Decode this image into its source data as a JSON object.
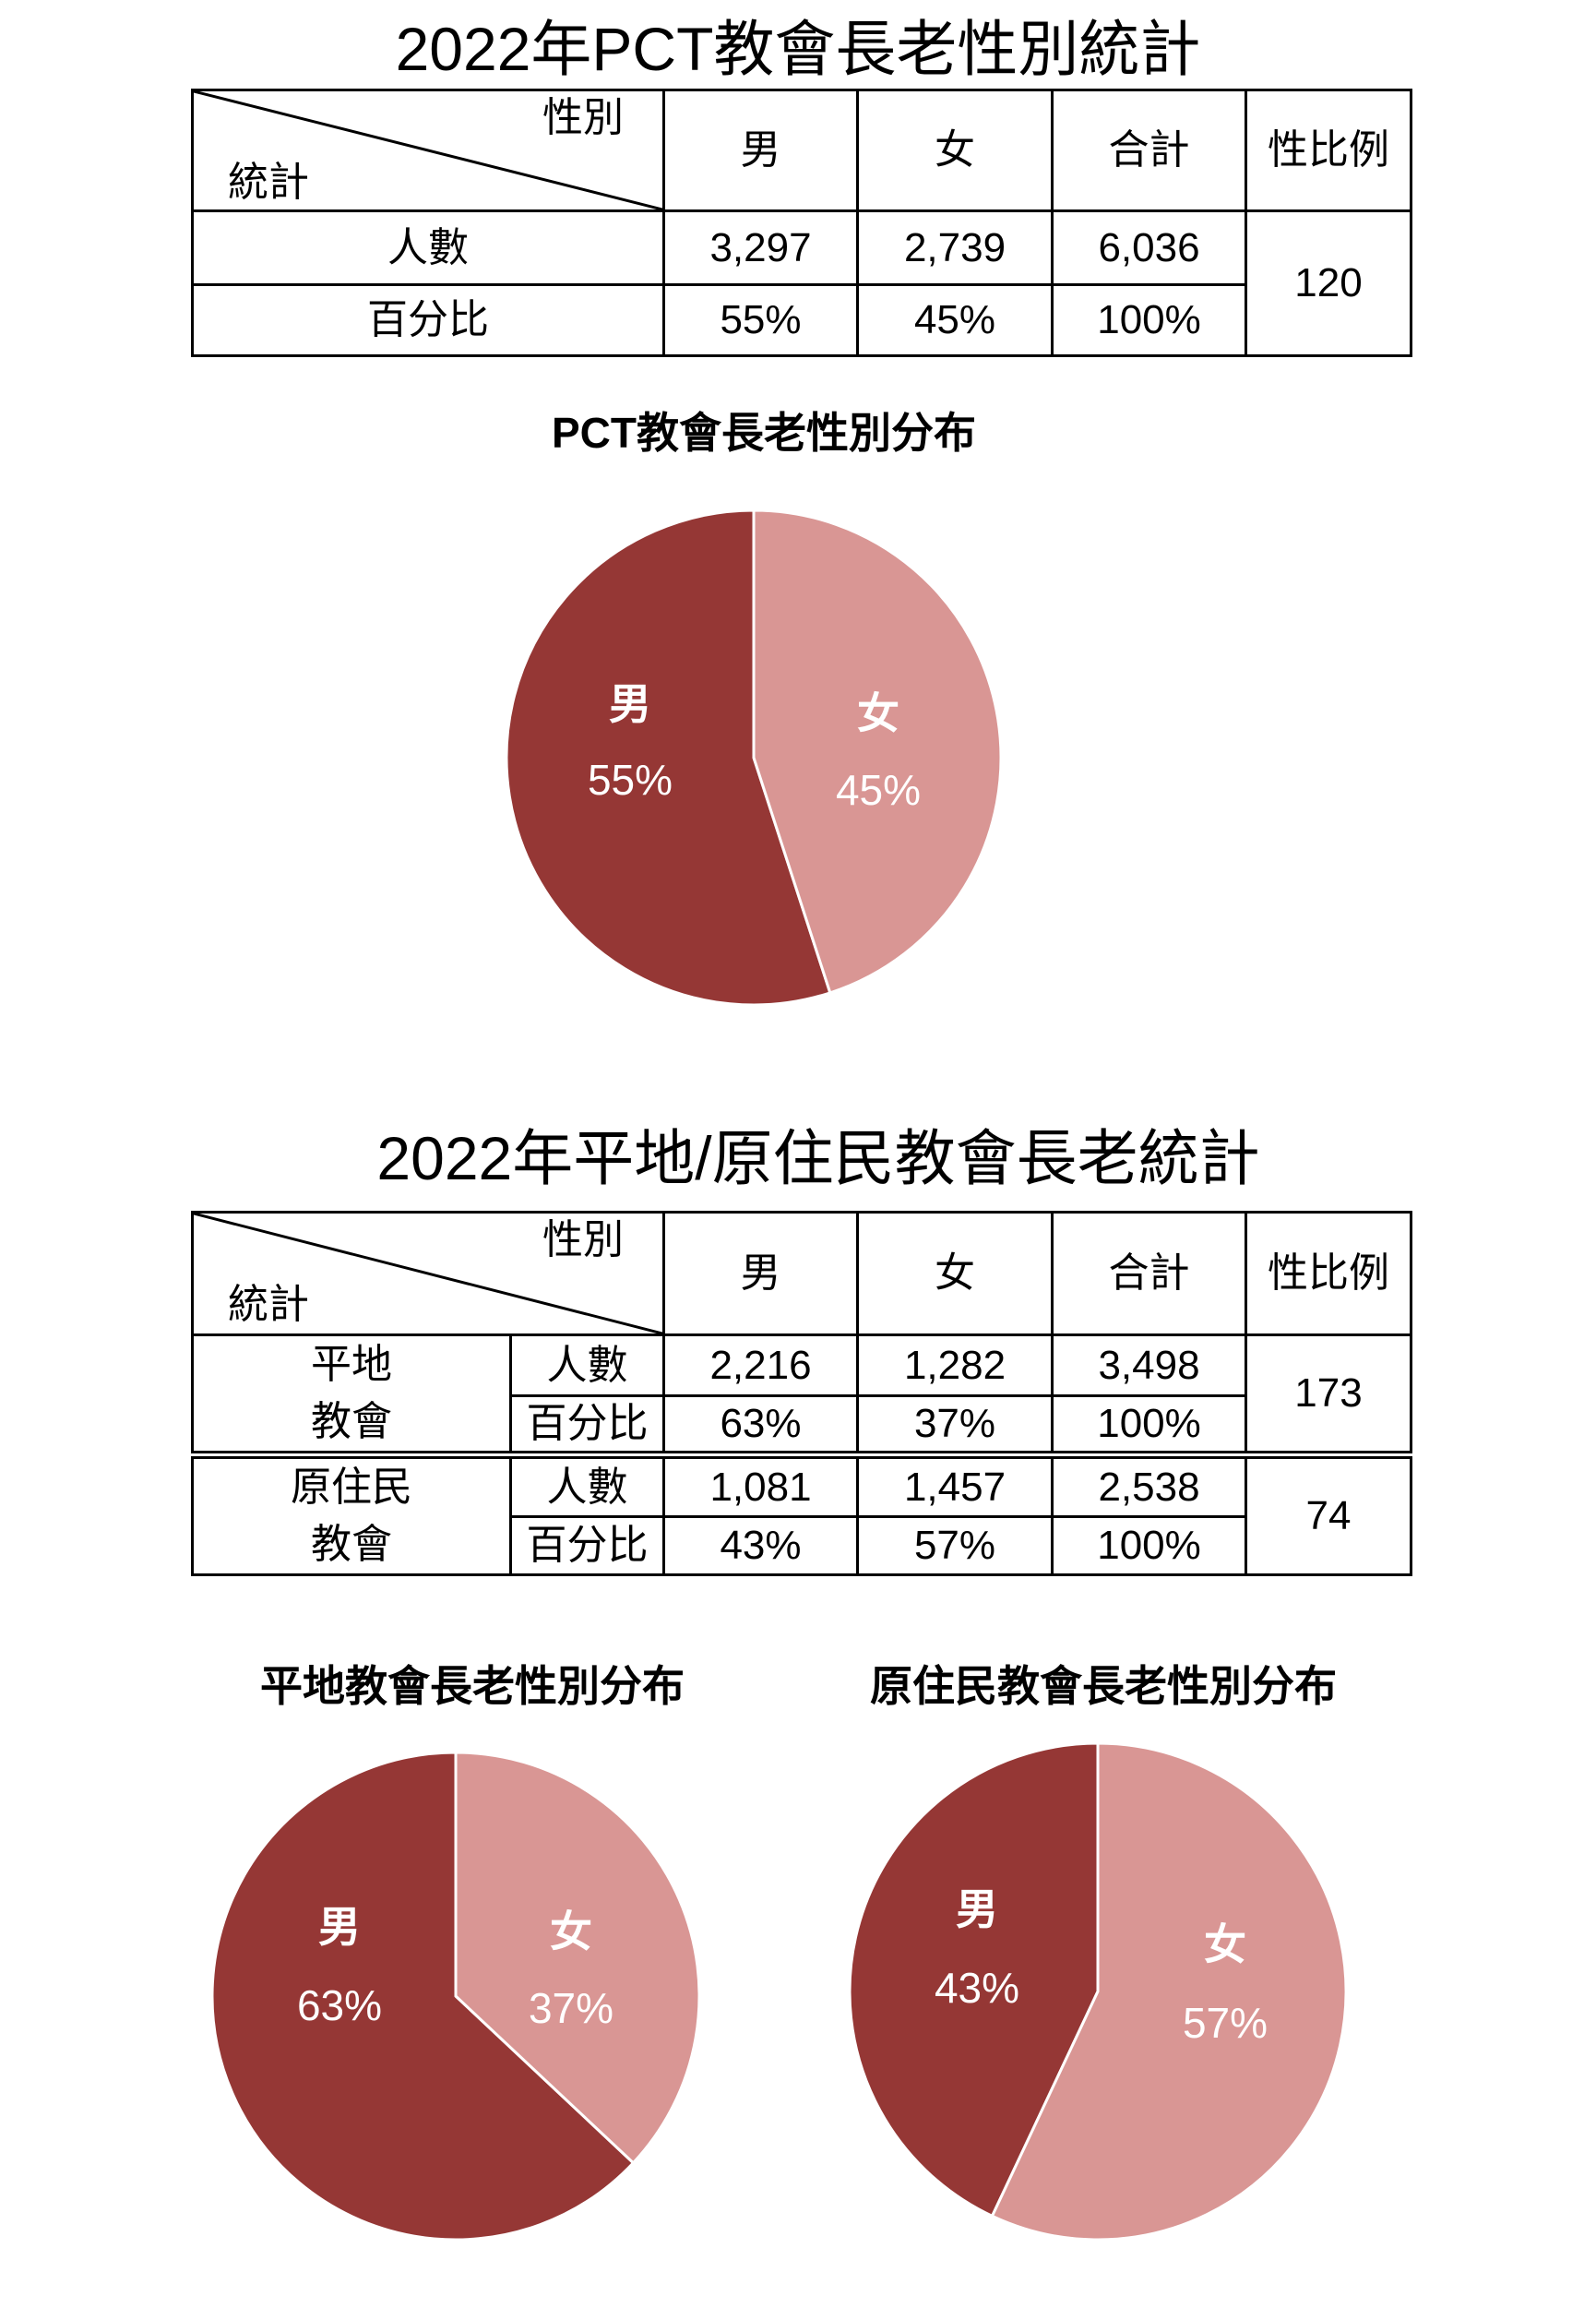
{
  "tables": [
    {
      "title": "2022年PCT教會長老性別統計",
      "corner_top": "性別",
      "corner_bottom": "統計",
      "columns": [
        "男",
        "女",
        "合計",
        "性比例"
      ],
      "rows": [
        {
          "label": "人數",
          "male": "3,297",
          "female": "2,739",
          "total": "6,036"
        },
        {
          "label": "百分比",
          "male": "55%",
          "female": "45%",
          "total": "100%"
        }
      ],
      "sex_ratio": "120"
    },
    {
      "title": "2022年平地/原住民教會長老統計",
      "corner_top": "性別",
      "corner_bottom": "統計",
      "columns": [
        "男",
        "女",
        "合計",
        "性比例"
      ],
      "groups": [
        {
          "name_lines": [
            "平地",
            "教會"
          ],
          "rows": [
            {
              "label": "人數",
              "male": "2,216",
              "female": "1,282",
              "total": "3,498"
            },
            {
              "label": "百分比",
              "male": "63%",
              "female": "37%",
              "total": "100%"
            }
          ],
          "sex_ratio": "173"
        },
        {
          "name_lines": [
            "原住民",
            "教會"
          ],
          "rows": [
            {
              "label": "人數",
              "male": "1,081",
              "female": "1,457",
              "total": "2,538"
            },
            {
              "label": "百分比",
              "male": "43%",
              "female": "57%",
              "total": "100%"
            }
          ],
          "sex_ratio": "74"
        }
      ]
    }
  ],
  "chart_data": [
    {
      "type": "pie",
      "title": "PCT教會長老性別分布",
      "categories": [
        "男",
        "女"
      ],
      "values": [
        55,
        45
      ],
      "data_labels": [
        "55%",
        "45%"
      ],
      "colors": [
        "#953735",
        "#D99694"
      ]
    },
    {
      "type": "pie",
      "title": "平地教會長老性別分布",
      "categories": [
        "男",
        "女"
      ],
      "values": [
        63,
        37
      ],
      "data_labels": [
        "63%",
        "37%"
      ],
      "colors": [
        "#953735",
        "#D99694"
      ]
    },
    {
      "type": "pie",
      "title": "原住民教會長老性別分布",
      "categories": [
        "男",
        "女"
      ],
      "values": [
        43,
        57
      ],
      "data_labels": [
        "43%",
        "57%"
      ],
      "colors": [
        "#953735",
        "#D99694"
      ]
    }
  ]
}
